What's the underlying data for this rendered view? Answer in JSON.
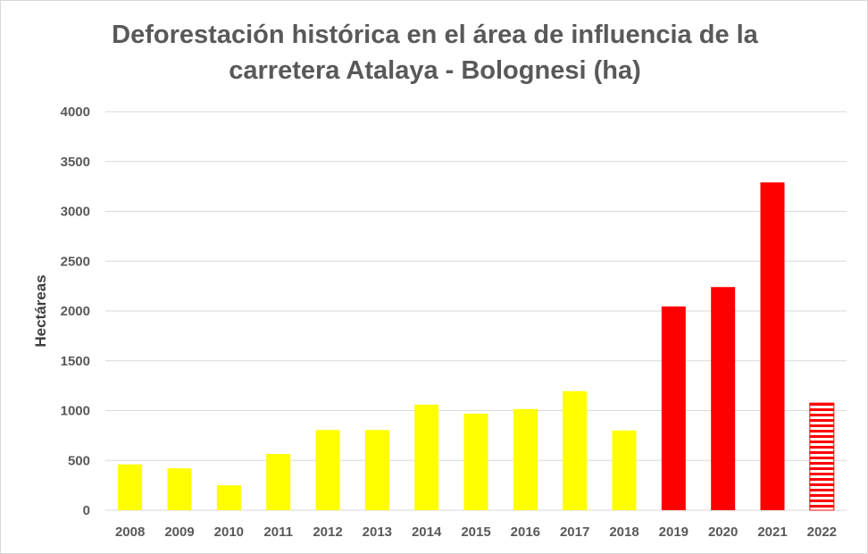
{
  "chart_data": {
    "type": "bar",
    "title_line1": "Deforestación histórica en el área de influencia de la",
    "title_line2": "carretera Atalaya - Bolognesi (ha)",
    "xlabel": "",
    "ylabel": "Hectáreas",
    "ylim": [
      0,
      4000
    ],
    "yticks": [
      0,
      500,
      1000,
      1500,
      2000,
      2500,
      3000,
      3500,
      4000
    ],
    "grid": true,
    "legend": "none",
    "categories": [
      "2008",
      "2009",
      "2010",
      "2011",
      "2012",
      "2013",
      "2014",
      "2015",
      "2016",
      "2017",
      "2018",
      "2019",
      "2020",
      "2021",
      "2022"
    ],
    "values": [
      460,
      420,
      250,
      565,
      805,
      805,
      1060,
      970,
      1015,
      1195,
      800,
      2045,
      2240,
      3290,
      1075
    ],
    "bar_styles": [
      "yellow",
      "yellow",
      "yellow",
      "yellow",
      "yellow",
      "yellow",
      "yellow",
      "yellow",
      "yellow",
      "yellow",
      "yellow",
      "red",
      "red",
      "red",
      "red-striped"
    ],
    "colors": {
      "yellow": "#ffff00",
      "red": "#ff0000",
      "stripe_bg": "#ffffff",
      "grid": "#d9d9d9",
      "text": "#595959"
    }
  }
}
